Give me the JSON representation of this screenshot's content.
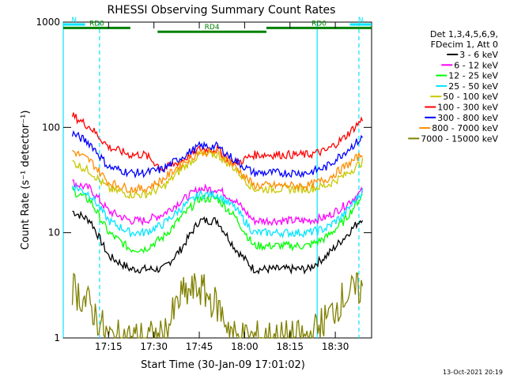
{
  "chart_data": {
    "type": "line",
    "title": "RHESSI Observing Summary Count Rates",
    "xlabel": "Start Time (30-Jan-09 17:01:02)",
    "ylabel": "Count Rate (s⁻¹ detector⁻¹)",
    "y_scale": "log",
    "ylim": [
      1,
      1000
    ],
    "y_ticks": [
      {
        "value": 1,
        "label": "1"
      },
      {
        "value": 10,
        "label": "10"
      },
      {
        "value": 100,
        "label": "100"
      },
      {
        "value": 1000,
        "label": "1000"
      }
    ],
    "x_range_minutes": [
      17.0,
      18.7
    ],
    "x_ticks": [
      {
        "value": 17.25,
        "label": "17:15"
      },
      {
        "value": 17.5,
        "label": "17:30"
      },
      {
        "value": 17.75,
        "label": "17:45"
      },
      {
        "value": 18.0,
        "label": "18:00"
      },
      {
        "value": 18.25,
        "label": "18:15"
      },
      {
        "value": 18.5,
        "label": "18:30"
      }
    ],
    "legend_header": [
      "Det 1,3,4,5,6,9,",
      "FDecim 1, Att 0"
    ],
    "legend_position": "right",
    "x": [
      17.05,
      17.15,
      17.25,
      17.37,
      17.45,
      17.55,
      17.65,
      17.75,
      17.85,
      17.95,
      18.05,
      18.15,
      18.25,
      18.35,
      18.45,
      18.55,
      18.65
    ],
    "series": [
      {
        "name": "3 - 6 keV",
        "color": "#000000",
        "values": [
          16,
          13,
          6,
          4.5,
          4.5,
          4.5,
          7,
          13,
          13,
          7,
          4.5,
          4.5,
          4.5,
          4.5,
          6,
          9,
          14
        ]
      },
      {
        "name": "6 - 12 keV",
        "color": "#ff00ff",
        "values": [
          30,
          26,
          16,
          13,
          13,
          15,
          20,
          26,
          26,
          20,
          13,
          13,
          13,
          13,
          14,
          18,
          25
        ]
      },
      {
        "name": "12 - 25 keV",
        "color": "#00ff00",
        "values": [
          25,
          20,
          10,
          7,
          7,
          9,
          14,
          21,
          21,
          14,
          7.5,
          7.5,
          7.5,
          7.5,
          9,
          13,
          23
        ]
      },
      {
        "name": "25 - 50 keV",
        "color": "#00e5ff",
        "values": [
          28,
          23,
          13,
          10,
          10,
          12,
          17,
          23,
          23,
          17,
          10,
          10,
          10,
          10,
          11,
          15,
          25
        ]
      },
      {
        "name": "50 - 100 keV",
        "color": "#c8c800",
        "values": [
          47,
          38,
          26,
          23,
          23,
          27,
          40,
          55,
          55,
          40,
          26,
          26,
          26,
          26,
          28,
          35,
          47
        ]
      },
      {
        "name": "100 - 300 keV",
        "color": "#ff0000",
        "values": [
          130,
          100,
          65,
          55,
          55,
          40,
          48,
          62,
          62,
          45,
          55,
          55,
          55,
          55,
          60,
          80,
          120
        ]
      },
      {
        "name": "300 - 800 keV",
        "color": "#0000ff",
        "values": [
          88,
          70,
          42,
          37,
          37,
          40,
          52,
          66,
          66,
          48,
          37,
          37,
          37,
          37,
          42,
          58,
          80
        ]
      },
      {
        "name": "800 - 7000 keV",
        "color": "#ff8c00",
        "values": [
          60,
          48,
          30,
          26,
          26,
          32,
          45,
          58,
          58,
          42,
          28,
          28,
          28,
          28,
          32,
          42,
          56
        ]
      },
      {
        "name": "7000 - 15000 keV",
        "color": "#808000",
        "values": [
          3,
          2,
          1,
          1,
          1,
          1,
          2.5,
          3,
          2,
          1,
          1,
          1,
          1,
          1,
          1.5,
          2.5,
          3
        ]
      }
    ],
    "annotations": [
      {
        "label": "N",
        "color": "#00e5ff",
        "x_start": 17.0,
        "x_end": 17.12,
        "level": 950
      },
      {
        "label": "N",
        "color": "#00e5ff",
        "x_start": 18.58,
        "x_end": 18.7,
        "level": 950
      },
      {
        "label": "RD0",
        "color": "#008000",
        "x_start": 17.0,
        "x_end": 17.37,
        "level": 880
      },
      {
        "label": "RD0",
        "color": "#008000",
        "x_start": 18.12,
        "x_end": 18.7,
        "level": 880
      },
      {
        "label": "RD4",
        "color": "#008000",
        "x_start": 17.52,
        "x_end": 18.12,
        "level": 810
      }
    ],
    "vertical_markers": [
      {
        "x": 17.0,
        "color": "#00e5ff",
        "style": "solid"
      },
      {
        "x": 17.2,
        "color": "#00e5ff",
        "style": "dashed"
      },
      {
        "x": 18.4,
        "color": "#00e5ff",
        "style": "solid"
      },
      {
        "x": 18.63,
        "color": "#00e5ff",
        "style": "dashed"
      }
    ],
    "grid": false
  },
  "footer_timestamp": "13-Oct-2021 20:19"
}
